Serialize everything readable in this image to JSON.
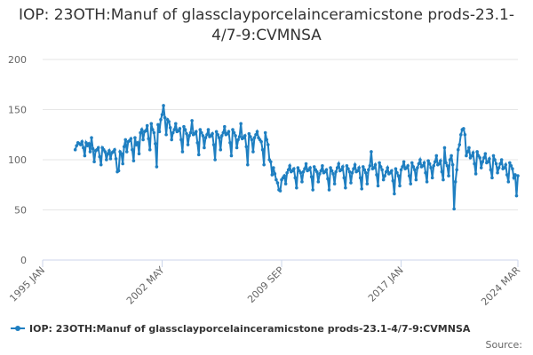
{
  "chart_data": {
    "type": "line",
    "title": "IOP: 23OTH:Manuf of glassclayporcelainceramicstone prods-23.1-4/7-9:CVMNSA",
    "source_label": "Source:",
    "xlim": [
      "1995-01",
      "2024-03"
    ],
    "xticks": [
      {
        "value": "1995-01",
        "label": "1995 JAN"
      },
      {
        "value": "2002-05",
        "label": "2002 MAY"
      },
      {
        "value": "2009-09",
        "label": "2009 SEP"
      },
      {
        "value": "2017-01",
        "label": "2017 JAN"
      },
      {
        "value": "2024-03",
        "label": "2024 MAR"
      }
    ],
    "ylim": [
      0,
      200
    ],
    "yticks": [
      0,
      50,
      100,
      150,
      200
    ],
    "grid": true,
    "x": [
      "1997-01",
      "1997-02",
      "1997-03",
      "1997-04",
      "1997-05",
      "1997-06",
      "1997-07",
      "1997-08",
      "1997-09",
      "1997-10",
      "1997-11",
      "1997-12",
      "1998-01",
      "1998-02",
      "1998-03",
      "1998-04",
      "1998-05",
      "1998-06",
      "1998-07",
      "1998-08",
      "1998-09",
      "1998-10",
      "1998-11",
      "1998-12",
      "1999-01",
      "1999-02",
      "1999-03",
      "1999-04",
      "1999-05",
      "1999-06",
      "1999-07",
      "1999-08",
      "1999-09",
      "1999-10",
      "1999-11",
      "1999-12",
      "2000-01",
      "2000-02",
      "2000-03",
      "2000-04",
      "2000-05",
      "2000-06",
      "2000-07",
      "2000-08",
      "2000-09",
      "2000-10",
      "2000-11",
      "2000-12",
      "2001-01",
      "2001-02",
      "2001-03",
      "2001-04",
      "2001-05",
      "2001-06",
      "2001-07",
      "2001-08",
      "2001-09",
      "2001-10",
      "2001-11",
      "2001-12",
      "2002-01",
      "2002-02",
      "2002-03",
      "2002-04",
      "2002-05",
      "2002-06",
      "2002-07",
      "2002-08",
      "2002-09",
      "2002-10",
      "2002-11",
      "2002-12",
      "2003-01",
      "2003-02",
      "2003-03",
      "2003-04",
      "2003-05",
      "2003-06",
      "2003-07",
      "2003-08",
      "2003-09",
      "2003-10",
      "2003-11",
      "2003-12",
      "2004-01",
      "2004-02",
      "2004-03",
      "2004-04",
      "2004-05",
      "2004-06",
      "2004-07",
      "2004-08",
      "2004-09",
      "2004-10",
      "2004-11",
      "2004-12",
      "2005-01",
      "2005-02",
      "2005-03",
      "2005-04",
      "2005-05",
      "2005-06",
      "2005-07",
      "2005-08",
      "2005-09",
      "2005-10",
      "2005-11",
      "2005-12",
      "2006-01",
      "2006-02",
      "2006-03",
      "2006-04",
      "2006-05",
      "2006-06",
      "2006-07",
      "2006-08",
      "2006-09",
      "2006-10",
      "2006-11",
      "2006-12",
      "2007-01",
      "2007-02",
      "2007-03",
      "2007-04",
      "2007-05",
      "2007-06",
      "2007-07",
      "2007-08",
      "2007-09",
      "2007-10",
      "2007-11",
      "2007-12",
      "2008-01",
      "2008-02",
      "2008-03",
      "2008-04",
      "2008-05",
      "2008-06",
      "2008-07",
      "2008-08",
      "2008-09",
      "2008-10",
      "2008-11",
      "2008-12",
      "2009-01",
      "2009-02",
      "2009-03",
      "2009-04",
      "2009-05",
      "2009-06",
      "2009-07",
      "2009-08",
      "2009-09",
      "2009-10",
      "2009-11",
      "2009-12",
      "2010-01",
      "2010-02",
      "2010-03",
      "2010-04",
      "2010-05",
      "2010-06",
      "2010-07",
      "2010-08",
      "2010-09",
      "2010-10",
      "2010-11",
      "2010-12",
      "2011-01",
      "2011-02",
      "2011-03",
      "2011-04",
      "2011-05",
      "2011-06",
      "2011-07",
      "2011-08",
      "2011-09",
      "2011-10",
      "2011-11",
      "2011-12",
      "2012-01",
      "2012-02",
      "2012-03",
      "2012-04",
      "2012-05",
      "2012-06",
      "2012-07",
      "2012-08",
      "2012-09",
      "2012-10",
      "2012-11",
      "2012-12",
      "2013-01",
      "2013-02",
      "2013-03",
      "2013-04",
      "2013-05",
      "2013-06",
      "2013-07",
      "2013-08",
      "2013-09",
      "2013-10",
      "2013-11",
      "2013-12",
      "2014-01",
      "2014-02",
      "2014-03",
      "2014-04",
      "2014-05",
      "2014-06",
      "2014-07",
      "2014-08",
      "2014-09",
      "2014-10",
      "2014-11",
      "2014-12",
      "2015-01",
      "2015-02",
      "2015-03",
      "2015-04",
      "2015-05",
      "2015-06",
      "2015-07",
      "2015-08",
      "2015-09",
      "2015-10",
      "2015-11",
      "2015-12",
      "2016-01",
      "2016-02",
      "2016-03",
      "2016-04",
      "2016-05",
      "2016-06",
      "2016-07",
      "2016-08",
      "2016-09",
      "2016-10",
      "2016-11",
      "2016-12",
      "2017-01",
      "2017-02",
      "2017-03",
      "2017-04",
      "2017-05",
      "2017-06",
      "2017-07",
      "2017-08",
      "2017-09",
      "2017-10",
      "2017-11",
      "2017-12",
      "2018-01",
      "2018-02",
      "2018-03",
      "2018-04",
      "2018-05",
      "2018-06",
      "2018-07",
      "2018-08",
      "2018-09",
      "2018-10",
      "2018-11",
      "2018-12",
      "2019-01",
      "2019-02",
      "2019-03",
      "2019-04",
      "2019-05",
      "2019-06",
      "2019-07",
      "2019-08",
      "2019-09",
      "2019-10",
      "2019-11",
      "2019-12",
      "2020-01",
      "2020-02",
      "2020-03",
      "2020-04",
      "2020-05",
      "2020-06",
      "2020-07",
      "2020-08",
      "2020-09",
      "2020-10",
      "2020-11",
      "2020-12",
      "2021-01",
      "2021-02",
      "2021-03",
      "2021-04",
      "2021-05",
      "2021-06",
      "2021-07",
      "2021-08",
      "2021-09",
      "2021-10",
      "2021-11",
      "2021-12",
      "2022-01",
      "2022-02",
      "2022-03",
      "2022-04",
      "2022-05",
      "2022-06",
      "2022-07",
      "2022-08",
      "2022-09",
      "2022-10",
      "2022-11",
      "2022-12",
      "2023-01",
      "2023-02",
      "2023-03",
      "2023-04",
      "2023-05",
      "2023-06",
      "2023-07",
      "2023-08",
      "2023-09",
      "2023-10",
      "2023-11",
      "2023-12",
      "2024-01",
      "2024-02",
      "2024-03"
    ],
    "series": [
      {
        "name": "IOP: 23OTH:Manuf of glassclayporcelainceramicstone prods-23.1-4/7-9:CVMNSA",
        "color": "#1f7fc1",
        "values": [
          110,
          114,
          117,
          116,
          115,
          118,
          112,
          104,
          117,
          114,
          116,
          108,
          122,
          111,
          98,
          109,
          110,
          112,
          103,
          95,
          112,
          110,
          108,
          100,
          106,
          109,
          101,
          107,
          108,
          110,
          101,
          88,
          89,
          108,
          106,
          96,
          113,
          120,
          108,
          118,
          119,
          121,
          110,
          99,
          122,
          115,
          117,
          106,
          127,
          130,
          120,
          128,
          129,
          134,
          121,
          110,
          136,
          130,
          127,
          116,
          93,
          135,
          128,
          140,
          145,
          154,
          142,
          125,
          140,
          138,
          132,
          120,
          127,
          130,
          136,
          128,
          129,
          131,
          120,
          108,
          133,
          130,
          126,
          115,
          124,
          127,
          139,
          125,
          126,
          128,
          117,
          105,
          130,
          127,
          124,
          112,
          122,
          125,
          130,
          123,
          124,
          126,
          115,
          100,
          128,
          125,
          122,
          110,
          124,
          127,
          133,
          125,
          126,
          128,
          117,
          104,
          130,
          127,
          124,
          112,
          120,
          123,
          136,
          121,
          122,
          124,
          113,
          95,
          126,
          123,
          120,
          108,
          122,
          125,
          128,
          122,
          120,
          118,
          110,
          95,
          127,
          120,
          115,
          100,
          98,
          85,
          92,
          86,
          80,
          77,
          70,
          69,
          80,
          82,
          84,
          76,
          87,
          90,
          94,
          88,
          89,
          91,
          82,
          72,
          92,
          89,
          87,
          78,
          88,
          91,
          96,
          89,
          90,
          92,
          83,
          70,
          93,
          90,
          88,
          78,
          86,
          89,
          94,
          87,
          88,
          90,
          81,
          70,
          92,
          89,
          86,
          76,
          88,
          92,
          96,
          89,
          90,
          93,
          82,
          72,
          94,
          91,
          88,
          77,
          87,
          91,
          95,
          88,
          89,
          92,
          82,
          71,
          93,
          90,
          87,
          76,
          90,
          94,
          108,
          91,
          92,
          95,
          85,
          74,
          97,
          93,
          90,
          80,
          84,
          88,
          92,
          86,
          87,
          89,
          79,
          66,
          91,
          87,
          84,
          74,
          90,
          93,
          98,
          91,
          92,
          94,
          84,
          76,
          97,
          93,
          90,
          80,
          92,
          96,
          100,
          93,
          94,
          97,
          87,
          78,
          99,
          96,
          92,
          82,
          94,
          98,
          104,
          95,
          96,
          99,
          88,
          80,
          112,
          97,
          94,
          84,
          100,
          104,
          95,
          51,
          78,
          90,
          110,
          115,
          125,
          130,
          131,
          125,
          104,
          108,
          112,
          102,
          104,
          107,
          96,
          86,
          108,
          104,
          102,
          92,
          98,
          102,
          106,
          97,
          98,
          101,
          90,
          82,
          104,
          100,
          96,
          87,
          92,
          96,
          100,
          91,
          92,
          95,
          85,
          78,
          97,
          94,
          91,
          82,
          85,
          64,
          84
        ]
      }
    ]
  }
}
